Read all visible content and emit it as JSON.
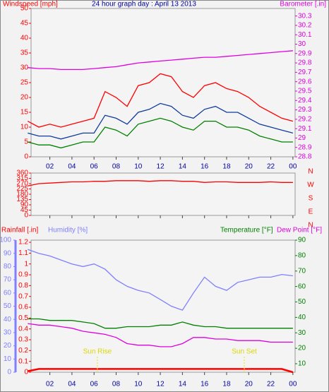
{
  "chart_data": [
    {
      "type": "line",
      "title": "24 hour graph day : April 13 2013",
      "y_label": "Windspeed [mph]",
      "y2_label": "Barometer [.in]",
      "x": [
        0,
        1,
        2,
        3,
        4,
        5,
        6,
        7,
        8,
        9,
        10,
        11,
        12,
        13,
        14,
        15,
        16,
        17,
        18,
        19,
        20,
        21,
        22,
        23,
        24
      ],
      "xlim": [
        0.3,
        24.2
      ],
      "xticks": [
        {
          "value": 2,
          "label": "02"
        },
        {
          "value": 4,
          "label": "04"
        },
        {
          "value": 6,
          "label": "06"
        },
        {
          "value": 8,
          "label": "08"
        },
        10,
        12,
        14,
        16,
        18,
        20,
        22,
        {
          "value": 24,
          "label": "00"
        }
      ],
      "ylim": [
        0,
        50
      ],
      "yticks": [
        0,
        5,
        10,
        15,
        20,
        25,
        30,
        35,
        40,
        45,
        50
      ],
      "y2lim": [
        28.8,
        30.38
      ],
      "y2ticks": [
        28.8,
        28.9,
        29,
        29.1,
        29.2,
        29.3,
        29.4,
        29.5,
        29.6,
        29.7,
        29.8,
        29.9,
        30,
        30.1,
        30.2,
        30.3
      ],
      "series": [
        {
          "color": "#ff0000",
          "values": [
            12,
            10,
            11,
            10,
            11,
            12,
            13,
            22,
            20,
            17,
            24,
            25,
            28,
            27,
            22,
            20,
            24,
            25,
            23,
            22,
            20,
            17,
            15,
            13,
            12
          ]
        },
        {
          "color": "#103c9c",
          "values": [
            8,
            7,
            7,
            6,
            7,
            8,
            8,
            14,
            13,
            11,
            15,
            16,
            18,
            17,
            14,
            13,
            16,
            17,
            15,
            15,
            13,
            11,
            10,
            9,
            8
          ]
        },
        {
          "color": "#008000",
          "values": [
            5,
            4,
            4,
            3,
            4,
            5,
            5,
            10,
            9,
            7,
            11,
            12,
            13,
            12,
            10,
            9,
            12,
            12,
            10,
            10,
            9,
            7,
            6,
            5,
            5
          ]
        },
        {
          "color": "#e000e0",
          "axis": "y2",
          "values": [
            29.75,
            29.74,
            29.74,
            29.73,
            29.73,
            29.73,
            29.74,
            29.75,
            29.76,
            29.78,
            29.8,
            29.81,
            29.82,
            29.83,
            29.84,
            29.85,
            29.86,
            29.86,
            29.87,
            29.88,
            29.89,
            29.9,
            29.91,
            29.92,
            29.93
          ]
        }
      ]
    },
    {
      "type": "line",
      "x": [
        0,
        1,
        2,
        3,
        4,
        5,
        6,
        7,
        8,
        9,
        10,
        11,
        12,
        13,
        14,
        15,
        16,
        17,
        18,
        19,
        20,
        21,
        22,
        23,
        24
      ],
      "xlim": [
        0.3,
        24.2
      ],
      "xticks": [
        {
          "value": 2,
          "label": "02"
        },
        {
          "value": 4,
          "label": "04"
        },
        {
          "value": 6,
          "label": "06"
        },
        {
          "value": 8,
          "label": "08"
        },
        10,
        12,
        14,
        16,
        18,
        20,
        22,
        {
          "value": 24,
          "label": "00"
        }
      ],
      "ylim": [
        0,
        360
      ],
      "yticks": [
        0,
        45,
        90,
        135,
        180,
        225,
        270,
        315,
        360
      ],
      "compass_labels": [
        "N",
        "W",
        "S",
        "E",
        "N"
      ],
      "series": [
        {
          "color": "#ff0000",
          "values": [
            250,
            270,
            275,
            280,
            285,
            285,
            290,
            290,
            295,
            295,
            295,
            290,
            295,
            295,
            290,
            290,
            280,
            285,
            285,
            280,
            280,
            280,
            285,
            280,
            280
          ]
        }
      ]
    },
    {
      "type": "line",
      "x": [
        0,
        1,
        2,
        3,
        4,
        5,
        6,
        7,
        8,
        9,
        10,
        11,
        12,
        13,
        14,
        15,
        16,
        17,
        18,
        19,
        20,
        21,
        22,
        23,
        24
      ],
      "xlim": [
        0.3,
        24.2
      ],
      "xticks": [
        {
          "value": 2,
          "label": "02"
        },
        {
          "value": 4,
          "label": "04"
        },
        {
          "value": 6,
          "label": "06"
        },
        {
          "value": 8,
          "label": "08"
        },
        10,
        12,
        14,
        16,
        18,
        20,
        22,
        {
          "value": 24,
          "label": "00"
        }
      ],
      "ylim": [
        0,
        1.22
      ],
      "yticks": [
        0,
        0.1,
        0.2,
        0.3,
        0.4,
        0.5,
        0.6,
        0.7,
        0.8,
        0.9,
        1,
        1.1,
        1.2
      ],
      "y2lim": [
        4.5,
        90
      ],
      "y2ticks": [
        10,
        20,
        30,
        40,
        50,
        60,
        70,
        80,
        90
      ],
      "y3lim": [
        0,
        100
      ],
      "y3ticks": [
        0,
        10,
        20,
        30,
        40,
        50,
        60,
        70,
        80,
        90,
        100
      ],
      "series": [
        {
          "name": "Rainfall [.in]",
          "color": "#ff0000",
          "values": [
            0.01,
            0.03,
            0.03,
            0.03,
            0.03,
            0.03,
            0.03,
            0.03,
            0.03,
            0.03,
            0.03,
            0.03,
            0.03,
            0.03,
            0.03,
            0.03,
            0.03,
            0.03,
            0.03,
            0.03,
            0.03,
            0.03,
            0.03,
            0.03,
            0
          ]
        },
        {
          "name": "Humidity [%]",
          "color": "#7f7fff",
          "axis": "y3",
          "values": [
            93,
            90,
            88,
            85,
            82,
            80,
            82,
            78,
            70,
            65,
            62,
            60,
            55,
            50,
            47,
            60,
            72,
            65,
            62,
            68,
            70,
            72,
            72,
            74,
            73
          ]
        },
        {
          "name": "Temperature [°F]",
          "color": "#008000",
          "axis": "y2",
          "values": [
            39,
            39,
            38,
            38,
            38,
            37,
            36,
            33,
            33,
            34,
            34,
            34,
            35,
            35,
            37,
            35,
            34,
            34,
            33,
            33,
            33,
            33,
            33,
            33,
            33
          ]
        },
        {
          "name": "Dew Point [°F]",
          "color": "#e000e0",
          "axis": "y2",
          "values": [
            36,
            35,
            35,
            34,
            33,
            31,
            30,
            29,
            27,
            23,
            22,
            22,
            21,
            21,
            23,
            27,
            27,
            26,
            26,
            25,
            25,
            25,
            24,
            24,
            24
          ]
        }
      ],
      "annotations": [
        {
          "text": "Sun Rise",
          "x": 6.3
        },
        {
          "text": "Sun Set",
          "x": 19.6
        }
      ]
    }
  ]
}
